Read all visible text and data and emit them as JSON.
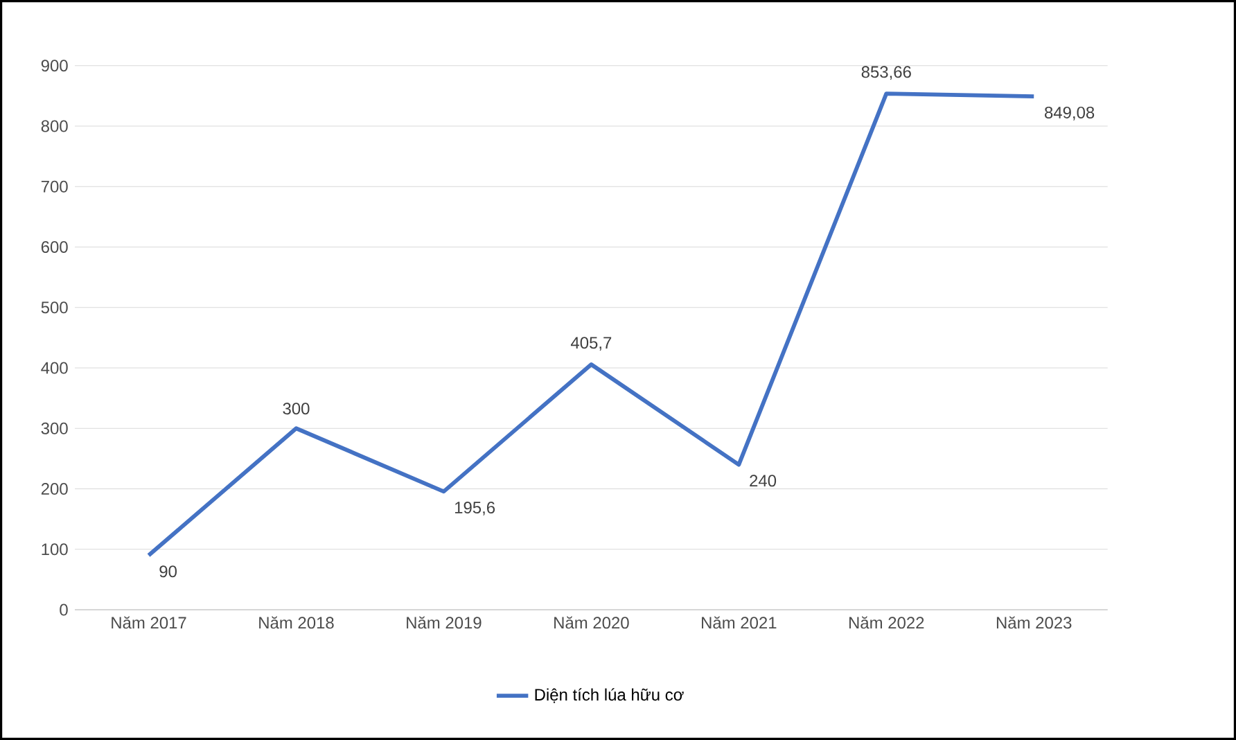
{
  "chart_data": {
    "type": "line",
    "categories": [
      "Năm 2017",
      "Năm 2018",
      "Năm 2019",
      "Năm 2020",
      "Năm 2021",
      "Năm 2022",
      "Năm 2023"
    ],
    "series": [
      {
        "name": "Diện tích lúa hữu cơ",
        "color": "#4472c4",
        "values": [
          90,
          300,
          195.6,
          405.7,
          240,
          853.66,
          849.08
        ],
        "value_labels": [
          "90",
          "300",
          "195,6",
          "405,7",
          "240",
          "853,66",
          "849,08"
        ]
      }
    ],
    "ylim": [
      0,
      900
    ],
    "yticks": [
      0,
      100,
      200,
      300,
      400,
      500,
      600,
      700,
      800,
      900
    ],
    "grid": "y",
    "legend": "bottom",
    "marker": "none",
    "line_style": "solid"
  }
}
